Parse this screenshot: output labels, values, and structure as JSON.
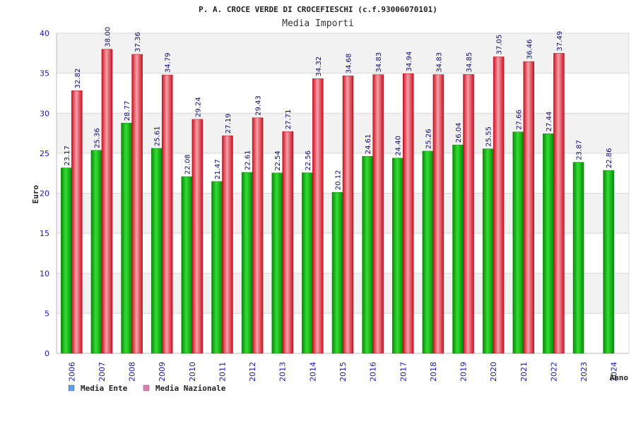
{
  "chart_data": {
    "type": "bar",
    "title": "P. A. CROCE VERDE DI CROCEFIESCHI (c.f.93006070101)",
    "subtitle": "Media Importi",
    "xlabel": "Anno",
    "ylabel": "Euro",
    "ylim": [
      0,
      40
    ],
    "yticks": [
      0,
      5,
      10,
      15,
      20,
      25,
      30,
      35,
      40
    ],
    "categories": [
      "2006",
      "2007",
      "2008",
      "2009",
      "2010",
      "2011",
      "2012",
      "2013",
      "2014",
      "2015",
      "2016",
      "2017",
      "2018",
      "2019",
      "2020",
      "2021",
      "2022",
      "2023",
      "2024"
    ],
    "series": [
      {
        "name": "Media Ente",
        "color": "#22bb22",
        "legend_color": "#5aa0e6",
        "values": [
          23.17,
          25.36,
          28.77,
          25.61,
          22.08,
          21.47,
          22.61,
          22.54,
          22.56,
          20.12,
          24.61,
          24.4,
          25.26,
          26.04,
          25.55,
          27.66,
          27.44,
          23.87,
          22.86
        ],
        "labels": [
          "23.17",
          "25.36",
          "28.77",
          "25.61",
          "22.08",
          "21.47",
          "22.61",
          "22.54",
          "22.56",
          "20.12",
          "24.61",
          "24.40",
          "25.26",
          "26.04",
          "25.55",
          "27.66",
          "27.44",
          "23.87",
          "22.86"
        ]
      },
      {
        "name": "Media Nazionale",
        "color": "#ee2233",
        "legend_color": "#e07ab0",
        "values": [
          32.82,
          38.0,
          37.36,
          34.79,
          29.24,
          27.19,
          29.43,
          27.71,
          34.32,
          34.68,
          34.83,
          34.94,
          34.83,
          34.85,
          37.05,
          36.46,
          37.49,
          null,
          null
        ],
        "labels": [
          "32.82",
          "38.00",
          "37.36",
          "34.79",
          "29.24",
          "27.19",
          "29.43",
          "27.71",
          "34.32",
          "34.68",
          "34.83",
          "34.94",
          "34.83",
          "34.85",
          "37.05",
          "36.46",
          "37.49",
          null,
          null
        ]
      }
    ],
    "grid": true,
    "legend_position": "bottom-left"
  }
}
